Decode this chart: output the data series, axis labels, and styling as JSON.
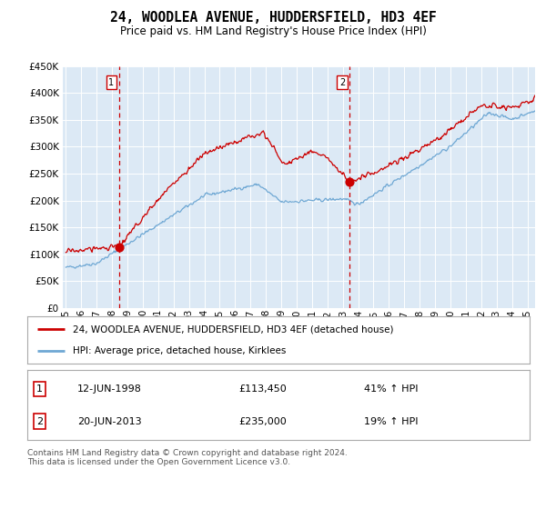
{
  "title": "24, WOODLEA AVENUE, HUDDERSFIELD, HD3 4EF",
  "subtitle": "Price paid vs. HM Land Registry's House Price Index (HPI)",
  "plot_bg_color": "#dce9f5",
  "hpi_color": "#6fa8d4",
  "price_color": "#cc0000",
  "ylim": [
    0,
    450000
  ],
  "yticks": [
    0,
    50000,
    100000,
    150000,
    200000,
    250000,
    300000,
    350000,
    400000,
    450000
  ],
  "ytick_labels": [
    "£0",
    "£50K",
    "£100K",
    "£150K",
    "£200K",
    "£250K",
    "£300K",
    "£350K",
    "£400K",
    "£450K"
  ],
  "sale1_price": 113450,
  "sale1_x": 1998.46,
  "sale1_label": "12-JUN-1998",
  "sale1_price_label": "£113,450",
  "sale1_hpi_label": "41% ↑ HPI",
  "sale2_price": 235000,
  "sale2_x": 2013.46,
  "sale2_label": "20-JUN-2013",
  "sale2_price_label": "£235,000",
  "sale2_hpi_label": "19% ↑ HPI",
  "legend_line1": "24, WOODLEA AVENUE, HUDDERSFIELD, HD3 4EF (detached house)",
  "legend_line2": "HPI: Average price, detached house, Kirklees",
  "footer": "Contains HM Land Registry data © Crown copyright and database right 2024.\nThis data is licensed under the Open Government Licence v3.0."
}
